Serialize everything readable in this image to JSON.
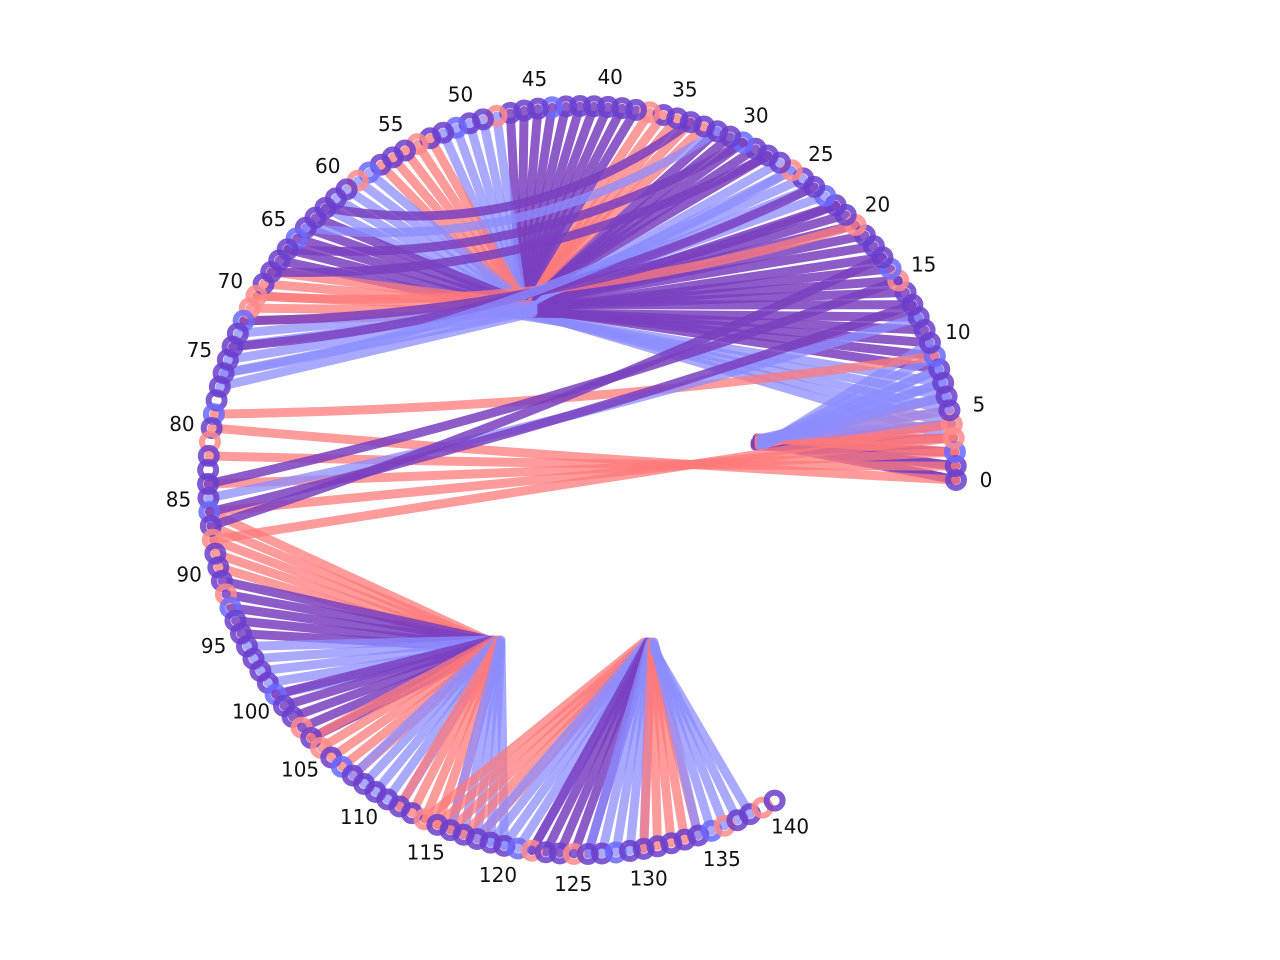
{
  "diagram": {
    "type": "arc-diagram",
    "node_count": 141,
    "tick_labels": [
      "0",
      "5",
      "10",
      "15",
      "20",
      "25",
      "30",
      "35",
      "40",
      "45",
      "50",
      "55",
      "60",
      "65",
      "70",
      "75",
      "80",
      "85",
      "90",
      "95",
      "100",
      "105",
      "110",
      "115",
      "120",
      "125",
      "130",
      "135",
      "140"
    ],
    "colors": {
      "red": "#ff7a7a",
      "blue": "#8c8cff",
      "purple": "#7a3fbf",
      "node_purple": "#6a3ecc",
      "node_red": "#ff8a8a",
      "node_blue": "#6a6aff"
    },
    "groups": [
      {
        "name": "upper-fan",
        "members": [
          {
            "node": 5,
            "color": "blue"
          },
          {
            "node": 10,
            "color": "purple"
          },
          {
            "node": 15,
            "color": "purple"
          },
          {
            "node": 20,
            "color": "purple"
          },
          {
            "node": 25,
            "color": "blue"
          },
          {
            "node": 30,
            "color": "purple"
          },
          {
            "node": 35,
            "color": "red"
          },
          {
            "node": 40,
            "color": "purple"
          },
          {
            "node": 45,
            "color": "purple"
          },
          {
            "node": 50,
            "color": "blue"
          },
          {
            "node": 55,
            "color": "red"
          },
          {
            "node": 60,
            "color": "blue"
          },
          {
            "node": 65,
            "color": "purple"
          },
          {
            "node": 70,
            "color": "red"
          },
          {
            "node": 75,
            "color": "blue"
          }
        ]
      },
      {
        "name": "right-loop",
        "members": [
          {
            "node": 0,
            "color": "purple"
          },
          {
            "node": 2,
            "color": "purple"
          },
          {
            "node": 4,
            "color": "red"
          },
          {
            "node": 6,
            "color": "blue"
          },
          {
            "node": 8,
            "color": "blue"
          }
        ]
      },
      {
        "name": "lower-left-fan",
        "members": [
          {
            "node": 88,
            "color": "red"
          },
          {
            "node": 93,
            "color": "purple"
          },
          {
            "node": 98,
            "color": "blue"
          },
          {
            "node": 102,
            "color": "purple"
          },
          {
            "node": 106,
            "color": "red"
          },
          {
            "node": 110,
            "color": "blue"
          },
          {
            "node": 114,
            "color": "red"
          },
          {
            "node": 118,
            "color": "blue"
          }
        ]
      },
      {
        "name": "lower-right-fan",
        "members": [
          {
            "node": 116,
            "color": "red"
          },
          {
            "node": 120,
            "color": "blue"
          },
          {
            "node": 124,
            "color": "purple"
          },
          {
            "node": 128,
            "color": "blue"
          },
          {
            "node": 132,
            "color": "red"
          },
          {
            "node": 136,
            "color": "blue"
          }
        ]
      }
    ],
    "chords": [
      {
        "from": 0,
        "to": 80,
        "color": "red"
      },
      {
        "from": 1,
        "to": 82,
        "color": "red"
      },
      {
        "from": 2,
        "to": 84,
        "color": "red"
      },
      {
        "from": 3,
        "to": 86,
        "color": "red"
      },
      {
        "from": 4,
        "to": 88,
        "color": "red"
      },
      {
        "from": 9,
        "to": 79,
        "color": "red"
      },
      {
        "from": 12,
        "to": 85,
        "color": "blue"
      },
      {
        "from": 13,
        "to": 86,
        "color": "purple"
      },
      {
        "from": 15,
        "to": 84,
        "color": "purple"
      },
      {
        "from": 17,
        "to": 87,
        "color": "purple"
      },
      {
        "from": 20,
        "to": 70,
        "color": "red"
      },
      {
        "from": 22,
        "to": 72,
        "color": "purple"
      },
      {
        "from": 24,
        "to": 74,
        "color": "purple"
      },
      {
        "from": 26,
        "to": 76,
        "color": "blue"
      },
      {
        "from": 28,
        "to": 68,
        "color": "purple"
      },
      {
        "from": 30,
        "to": 66,
        "color": "purple"
      },
      {
        "from": 32,
        "to": 64,
        "color": "blue"
      },
      {
        "from": 34,
        "to": 62,
        "color": "purple"
      }
    ]
  }
}
